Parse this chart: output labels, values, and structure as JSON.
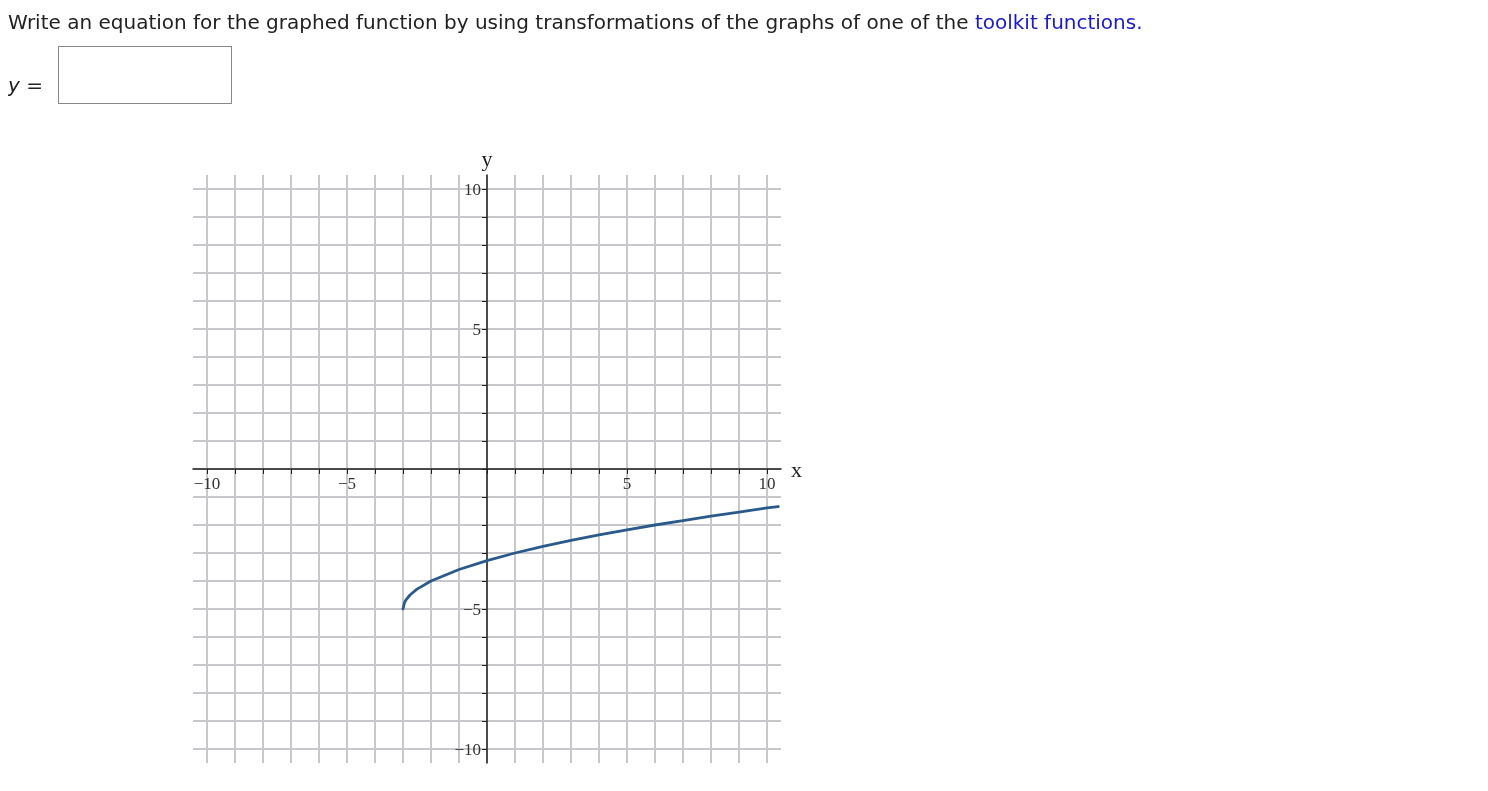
{
  "chart_data": {
    "type": "line",
    "title": "Write an equation for the graphed function by using transformations of the graphs of one of the",
    "annotations": [
      "toolkit functions.",
      "y ="
    ],
    "xlabel": "x",
    "ylabel": "y",
    "x": [
      -3,
      -2.95,
      -2.9,
      -2.75,
      -2.5,
      -2,
      -1,
      0,
      1,
      2,
      3,
      4,
      5,
      6,
      7,
      8,
      9,
      10,
      10.4
    ],
    "series": [
      {
        "color": "#2a5a8c",
        "values": [
          -5,
          -4.78,
          -4.68,
          -4.5,
          -4.29,
          -4,
          -3.59,
          -3.27,
          -3,
          -2.76,
          -2.55,
          -2.35,
          -2.17,
          -2,
          -1.84,
          -1.68,
          -1.54,
          -1.39,
          -1.34
        ]
      }
    ],
    "xlim": [
      -10.5,
      10.5
    ],
    "ylim": [
      -10.5,
      10.5
    ],
    "xticks": [
      {
        "value": -10,
        "label": "−10"
      },
      {
        "value": -9,
        "label": null
      },
      {
        "value": -8,
        "label": null
      },
      {
        "value": -7,
        "label": null
      },
      {
        "value": -6,
        "label": null
      },
      {
        "value": -5,
        "label": "−5"
      },
      {
        "value": -4,
        "label": null
      },
      {
        "value": -3,
        "label": null
      },
      {
        "value": -2,
        "label": null
      },
      {
        "value": -1,
        "label": null
      },
      {
        "value": 0,
        "label": null
      },
      {
        "value": 1,
        "label": null
      },
      {
        "value": 2,
        "label": null
      },
      {
        "value": 3,
        "label": null
      },
      {
        "value": 4,
        "label": null
      },
      {
        "value": 5,
        "label": "5"
      },
      {
        "value": 6,
        "label": null
      },
      {
        "value": 7,
        "label": null
      },
      {
        "value": 8,
        "label": null
      },
      {
        "value": 9,
        "label": null
      },
      {
        "value": 10,
        "label": "10"
      }
    ],
    "yticks": [
      {
        "value": -10,
        "label": "−10"
      },
      {
        "value": -9,
        "label": null
      },
      {
        "value": -8,
        "label": null
      },
      {
        "value": -7,
        "label": null
      },
      {
        "value": -6,
        "label": null
      },
      {
        "value": -5,
        "label": "−5"
      },
      {
        "value": -4,
        "label": null
      },
      {
        "value": -3,
        "label": null
      },
      {
        "value": -2,
        "label": null
      },
      {
        "value": -1,
        "label": null
      },
      {
        "value": 0,
        "label": null
      },
      {
        "value": 1,
        "label": null
      },
      {
        "value": 2,
        "label": null
      },
      {
        "value": 3,
        "label": null
      },
      {
        "value": 4,
        "label": null
      },
      {
        "value": 5,
        "label": "5"
      },
      {
        "value": 6,
        "label": null
      },
      {
        "value": 7,
        "label": null
      },
      {
        "value": 8,
        "label": null
      },
      {
        "value": 9,
        "label": null
      },
      {
        "value": 10,
        "label": "10"
      }
    ],
    "grid": true,
    "marker": "none",
    "line_style": "solid"
  }
}
